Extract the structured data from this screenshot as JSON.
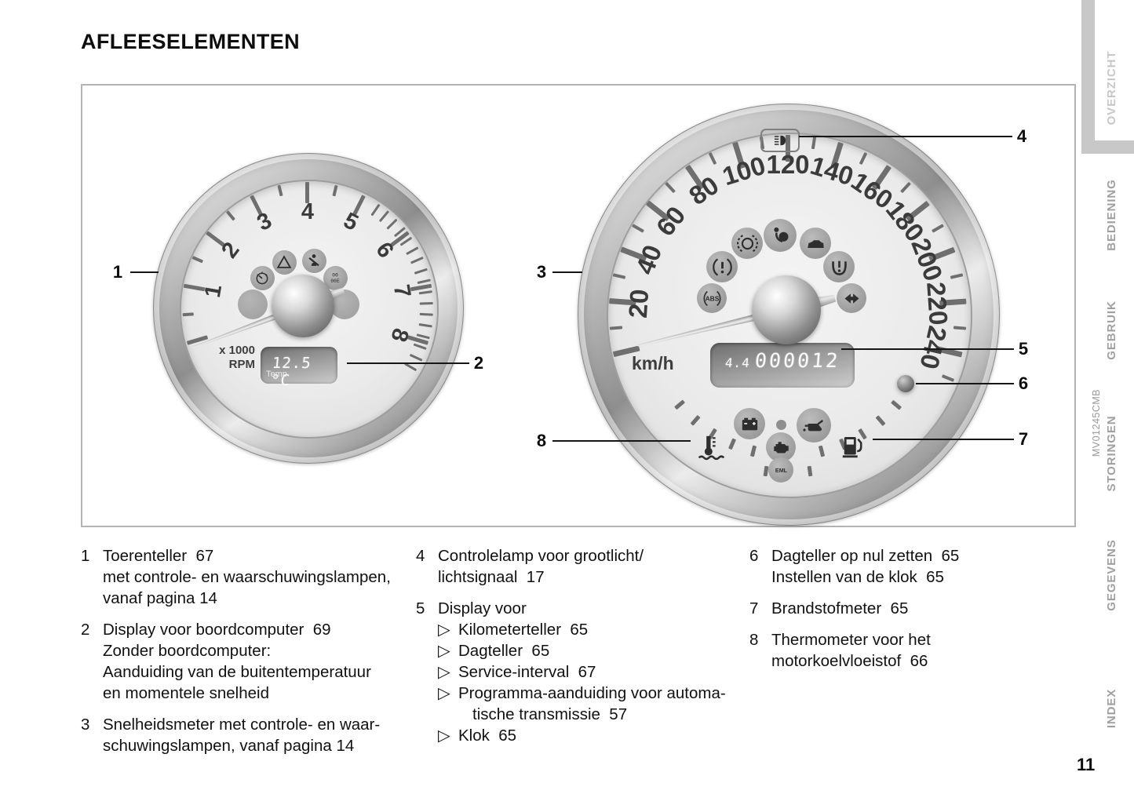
{
  "page": {
    "title": "AFLEESELEMENTEN",
    "page_number": "11",
    "figure_code": "MV01245CMB"
  },
  "sidebar": {
    "items": [
      {
        "label": "OVERZICHT",
        "active": true
      },
      {
        "label": "BEDIENING",
        "active": false
      },
      {
        "label": "GEBRUIK",
        "active": false
      },
      {
        "label": "STORINGEN",
        "active": false
      },
      {
        "label": "GEGEVENS",
        "active": false
      },
      {
        "label": "INDEX",
        "active": false
      }
    ]
  },
  "figure": {
    "tachometer": {
      "name": "Toerenteller",
      "scale_numbers": [
        "1",
        "2",
        "3",
        "4",
        "5",
        "6",
        "7",
        "8"
      ],
      "unit_label": [
        "x 1000",
        "RPM"
      ],
      "display": {
        "label": "Temp",
        "value": "12.5 °C"
      },
      "lamps": [
        "cruise-control-lamp",
        "warning-triangle-lamp",
        "seatbelt-lamp",
        "service-interval-lamp"
      ],
      "blank_lamps": [
        "blank-lamp-left",
        "blank-lamp-right"
      ]
    },
    "speedometer": {
      "name": "Snelheidsmeter",
      "scale_numbers": [
        "20",
        "40",
        "60",
        "80",
        "100",
        "120",
        "140",
        "160",
        "180",
        "200",
        "220",
        "240"
      ],
      "unit_label": "km/h",
      "odometer": {
        "trip": "4.4",
        "total": "000012"
      },
      "top_lamp": "high-beam-indicator",
      "lamps": [
        "brake-wear-lamp",
        "airbag-lamp",
        "vehicle-lamp",
        "brake-warning-lamp",
        "tire-pressure-lamp",
        "abs-lamp",
        "turn-signal-lamp"
      ],
      "bottom_lamps": [
        "coolant-temperature-icon",
        "battery-lamp",
        "small-dot-lamp",
        "oil-pressure-lamp",
        "check-engine-lamp",
        "eml-lamp",
        "fuel-icon"
      ],
      "reset_button": "trip-reset-button"
    },
    "callouts": [
      "1",
      "2",
      "3",
      "4",
      "5",
      "6",
      "7",
      "8"
    ]
  },
  "legend": {
    "columns": [
      {
        "items": [
          {
            "num": "1",
            "rows": [
              {
                "t": "Toerenteller  67"
              },
              {
                "t": "met controle- en waarschuwingslampen,"
              },
              {
                "t": "vanaf pagina 14"
              }
            ]
          },
          {
            "num": "2",
            "rows": [
              {
                "t": "Display voor boordcomputer  69"
              },
              {
                "t": "Zonder boordcomputer:"
              },
              {
                "t": "Aanduiding van de buitentemperatuur"
              },
              {
                "t": "en momentele snelheid"
              }
            ]
          },
          {
            "num": "3",
            "rows": [
              {
                "t": "Snelheidsmeter met controle- en waar-"
              },
              {
                "t": "schuwingslampen, vanaf pagina 14"
              }
            ]
          }
        ]
      },
      {
        "items": [
          {
            "num": "4",
            "rows": [
              {
                "t": "Controlelamp voor grootlicht/"
              },
              {
                "t": "lichtsignaal  17"
              }
            ]
          },
          {
            "num": "5",
            "rows": [
              {
                "t": "Display voor"
              },
              {
                "t": "Kilometerteller  65",
                "b": 1
              },
              {
                "t": "Dagteller  65",
                "b": 1
              },
              {
                "t": "Service-interval  67",
                "b": 1
              },
              {
                "t": "Programma-aanduiding voor automa-",
                "b": 1
              },
              {
                "t": "tische transmissie  57",
                "c": 1
              },
              {
                "t": "Klok  65",
                "b": 1
              }
            ]
          }
        ]
      },
      {
        "items": [
          {
            "num": "6",
            "rows": [
              {
                "t": "Dagteller op nul zetten  65"
              },
              {
                "t": "Instellen van de klok  65"
              }
            ]
          },
          {
            "num": "7",
            "rows": [
              {
                "t": "Brandstofmeter  65"
              }
            ]
          },
          {
            "num": "8",
            "rows": [
              {
                "t": "Thermometer voor het"
              },
              {
                "t": "motorkoelvloeistof  66"
              }
            ]
          }
        ]
      }
    ]
  },
  "bullet_glyph": "▷"
}
